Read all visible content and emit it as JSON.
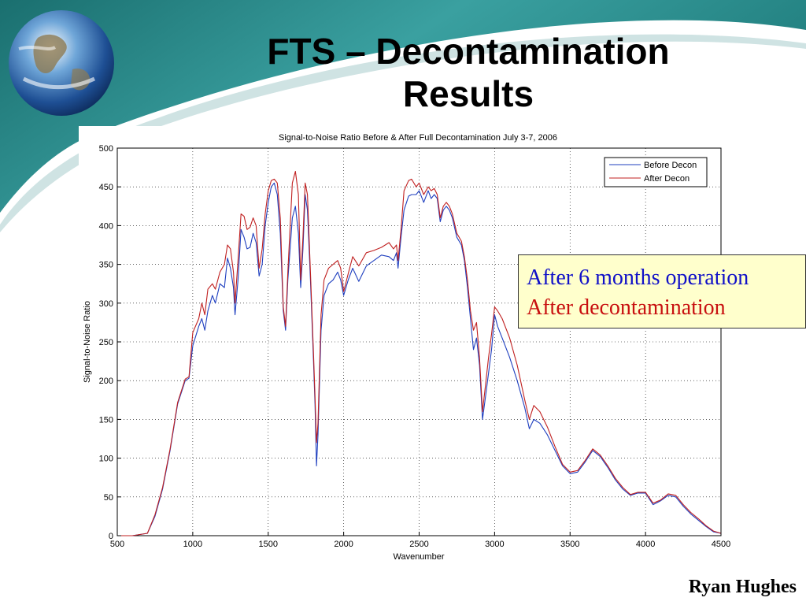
{
  "slide": {
    "title_line1": "FTS – Decontamination",
    "title_line2": "Results",
    "author": "Ryan Hughes",
    "callout_line1": "After 6 months operation",
    "callout_line2": "After decontamination",
    "colors": {
      "accent_teal": "#2a8a8a",
      "callout_bg": "#ffffcc",
      "callout_blue": "#1010c8",
      "callout_red": "#c81010"
    },
    "icon": "earth-globe-icon"
  },
  "chart_data": {
    "type": "line",
    "title": "Signal-to-Noise Ratio Before & After Full Decontamination July 3-7, 2006",
    "xlabel": "Wavenumber",
    "ylabel": "Signal-to-Noise Ratio",
    "xlim": [
      500,
      4500
    ],
    "ylim": [
      0,
      500
    ],
    "xticks": [
      500,
      1000,
      1500,
      2000,
      2500,
      3000,
      3500,
      4000,
      4500
    ],
    "yticks": [
      0,
      50,
      100,
      150,
      200,
      250,
      300,
      350,
      400,
      450,
      500
    ],
    "grid": true,
    "legend_position": "top-right",
    "series": [
      {
        "name": "Before Decon",
        "color": "#1f3fbf",
        "points": [
          [
            500,
            0
          ],
          [
            600,
            0
          ],
          [
            700,
            3
          ],
          [
            750,
            25
          ],
          [
            800,
            60
          ],
          [
            850,
            110
          ],
          [
            900,
            170
          ],
          [
            950,
            200
          ],
          [
            975,
            203
          ],
          [
            1000,
            245
          ],
          [
            1040,
            270
          ],
          [
            1060,
            280
          ],
          [
            1080,
            265
          ],
          [
            1100,
            290
          ],
          [
            1130,
            310
          ],
          [
            1150,
            300
          ],
          [
            1180,
            325
          ],
          [
            1210,
            320
          ],
          [
            1230,
            358
          ],
          [
            1250,
            345
          ],
          [
            1270,
            320
          ],
          [
            1280,
            285
          ],
          [
            1300,
            330
          ],
          [
            1320,
            395
          ],
          [
            1340,
            385
          ],
          [
            1360,
            370
          ],
          [
            1380,
            372
          ],
          [
            1400,
            390
          ],
          [
            1420,
            378
          ],
          [
            1440,
            335
          ],
          [
            1460,
            350
          ],
          [
            1480,
            400
          ],
          [
            1500,
            430
          ],
          [
            1520,
            450
          ],
          [
            1540,
            455
          ],
          [
            1560,
            440
          ],
          [
            1580,
            390
          ],
          [
            1600,
            290
          ],
          [
            1615,
            265
          ],
          [
            1630,
            330
          ],
          [
            1660,
            410
          ],
          [
            1680,
            425
          ],
          [
            1700,
            390
          ],
          [
            1715,
            320
          ],
          [
            1730,
            370
          ],
          [
            1745,
            440
          ],
          [
            1760,
            420
          ],
          [
            1780,
            330
          ],
          [
            1800,
            225
          ],
          [
            1810,
            170
          ],
          [
            1820,
            90
          ],
          [
            1830,
            130
          ],
          [
            1850,
            265
          ],
          [
            1870,
            310
          ],
          [
            1900,
            325
          ],
          [
            1930,
            330
          ],
          [
            1960,
            340
          ],
          [
            1980,
            330
          ],
          [
            2000,
            310
          ],
          [
            2030,
            330
          ],
          [
            2060,
            345
          ],
          [
            2100,
            328
          ],
          [
            2150,
            348
          ],
          [
            2200,
            355
          ],
          [
            2250,
            362
          ],
          [
            2300,
            360
          ],
          [
            2330,
            355
          ],
          [
            2350,
            365
          ],
          [
            2360,
            345
          ],
          [
            2380,
            385
          ],
          [
            2400,
            420
          ],
          [
            2430,
            438
          ],
          [
            2450,
            440
          ],
          [
            2480,
            440
          ],
          [
            2500,
            445
          ],
          [
            2530,
            430
          ],
          [
            2560,
            445
          ],
          [
            2580,
            435
          ],
          [
            2600,
            440
          ],
          [
            2620,
            435
          ],
          [
            2640,
            405
          ],
          [
            2660,
            420
          ],
          [
            2680,
            425
          ],
          [
            2700,
            420
          ],
          [
            2720,
            410
          ],
          [
            2750,
            385
          ],
          [
            2780,
            375
          ],
          [
            2800,
            355
          ],
          [
            2820,
            320
          ],
          [
            2840,
            280
          ],
          [
            2860,
            240
          ],
          [
            2880,
            255
          ],
          [
            2900,
            220
          ],
          [
            2920,
            150
          ],
          [
            2940,
            180
          ],
          [
            2960,
            210
          ],
          [
            2980,
            240
          ],
          [
            3000,
            285
          ],
          [
            3020,
            270
          ],
          [
            3050,
            255
          ],
          [
            3100,
            230
          ],
          [
            3150,
            200
          ],
          [
            3200,
            165
          ],
          [
            3230,
            138
          ],
          [
            3260,
            150
          ],
          [
            3300,
            145
          ],
          [
            3350,
            130
          ],
          [
            3400,
            110
          ],
          [
            3450,
            90
          ],
          [
            3500,
            80
          ],
          [
            3550,
            82
          ],
          [
            3600,
            95
          ],
          [
            3650,
            110
          ],
          [
            3700,
            102
          ],
          [
            3750,
            88
          ],
          [
            3800,
            72
          ],
          [
            3850,
            60
          ],
          [
            3900,
            52
          ],
          [
            3950,
            55
          ],
          [
            4000,
            55
          ],
          [
            4050,
            40
          ],
          [
            4100,
            45
          ],
          [
            4150,
            52
          ],
          [
            4200,
            50
          ],
          [
            4250,
            38
          ],
          [
            4300,
            28
          ],
          [
            4350,
            20
          ],
          [
            4400,
            12
          ],
          [
            4450,
            5
          ],
          [
            4500,
            3
          ]
        ]
      },
      {
        "name": "After Decon",
        "color": "#c02020",
        "points": [
          [
            500,
            0
          ],
          [
            600,
            0
          ],
          [
            700,
            3
          ],
          [
            750,
            27
          ],
          [
            800,
            62
          ],
          [
            850,
            112
          ],
          [
            900,
            172
          ],
          [
            950,
            202
          ],
          [
            975,
            205
          ],
          [
            1000,
            262
          ],
          [
            1040,
            280
          ],
          [
            1060,
            300
          ],
          [
            1080,
            285
          ],
          [
            1100,
            318
          ],
          [
            1130,
            325
          ],
          [
            1150,
            318
          ],
          [
            1180,
            340
          ],
          [
            1210,
            350
          ],
          [
            1230,
            375
          ],
          [
            1250,
            370
          ],
          [
            1270,
            340
          ],
          [
            1280,
            300
          ],
          [
            1300,
            355
          ],
          [
            1320,
            415
          ],
          [
            1340,
            412
          ],
          [
            1360,
            395
          ],
          [
            1380,
            398
          ],
          [
            1400,
            410
          ],
          [
            1420,
            400
          ],
          [
            1440,
            345
          ],
          [
            1460,
            370
          ],
          [
            1480,
            415
          ],
          [
            1500,
            445
          ],
          [
            1520,
            458
          ],
          [
            1540,
            460
          ],
          [
            1560,
            455
          ],
          [
            1580,
            410
          ],
          [
            1600,
            295
          ],
          [
            1615,
            270
          ],
          [
            1630,
            340
          ],
          [
            1660,
            455
          ],
          [
            1680,
            470
          ],
          [
            1700,
            440
          ],
          [
            1715,
            330
          ],
          [
            1730,
            385
          ],
          [
            1745,
            455
          ],
          [
            1760,
            440
          ],
          [
            1780,
            340
          ],
          [
            1800,
            235
          ],
          [
            1810,
            180
          ],
          [
            1820,
            120
          ],
          [
            1830,
            145
          ],
          [
            1850,
            285
          ],
          [
            1870,
            330
          ],
          [
            1900,
            345
          ],
          [
            1930,
            350
          ],
          [
            1960,
            355
          ],
          [
            1980,
            345
          ],
          [
            2000,
            315
          ],
          [
            2030,
            338
          ],
          [
            2060,
            360
          ],
          [
            2100,
            348
          ],
          [
            2150,
            365
          ],
          [
            2200,
            368
          ],
          [
            2250,
            372
          ],
          [
            2300,
            378
          ],
          [
            2330,
            370
          ],
          [
            2350,
            375
          ],
          [
            2360,
            355
          ],
          [
            2380,
            395
          ],
          [
            2400,
            445
          ],
          [
            2430,
            458
          ],
          [
            2450,
            460
          ],
          [
            2480,
            450
          ],
          [
            2500,
            455
          ],
          [
            2530,
            440
          ],
          [
            2560,
            450
          ],
          [
            2580,
            445
          ],
          [
            2600,
            448
          ],
          [
            2620,
            440
          ],
          [
            2640,
            410
          ],
          [
            2660,
            425
          ],
          [
            2680,
            430
          ],
          [
            2700,
            425
          ],
          [
            2720,
            415
          ],
          [
            2750,
            390
          ],
          [
            2780,
            380
          ],
          [
            2800,
            360
          ],
          [
            2820,
            330
          ],
          [
            2840,
            290
          ],
          [
            2860,
            265
          ],
          [
            2880,
            275
          ],
          [
            2900,
            230
          ],
          [
            2920,
            160
          ],
          [
            2940,
            195
          ],
          [
            2960,
            230
          ],
          [
            2980,
            260
          ],
          [
            3000,
            295
          ],
          [
            3020,
            290
          ],
          [
            3050,
            280
          ],
          [
            3100,
            255
          ],
          [
            3150,
            220
          ],
          [
            3200,
            175
          ],
          [
            3230,
            150
          ],
          [
            3260,
            168
          ],
          [
            3300,
            160
          ],
          [
            3350,
            140
          ],
          [
            3400,
            115
          ],
          [
            3450,
            92
          ],
          [
            3500,
            82
          ],
          [
            3550,
            84
          ],
          [
            3600,
            97
          ],
          [
            3650,
            112
          ],
          [
            3700,
            104
          ],
          [
            3750,
            90
          ],
          [
            3800,
            74
          ],
          [
            3850,
            62
          ],
          [
            3900,
            53
          ],
          [
            3950,
            56
          ],
          [
            4000,
            56
          ],
          [
            4050,
            42
          ],
          [
            4100,
            46
          ],
          [
            4150,
            54
          ],
          [
            4200,
            52
          ],
          [
            4250,
            40
          ],
          [
            4300,
            30
          ],
          [
            4350,
            22
          ],
          [
            4400,
            13
          ],
          [
            4450,
            6
          ],
          [
            4500,
            3
          ]
        ]
      }
    ]
  }
}
